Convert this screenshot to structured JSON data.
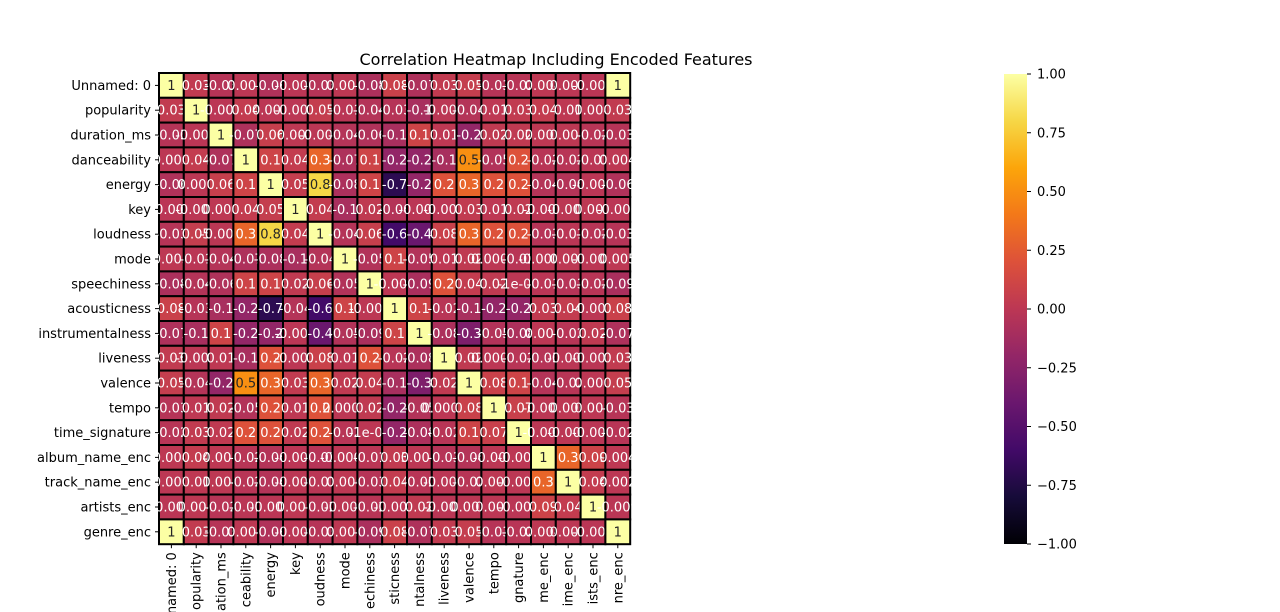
{
  "chart_data": {
    "type": "heatmap",
    "title": "Correlation Heatmap Including Encoded Features",
    "colormap": "inferno",
    "vmin": -1.0,
    "vmax": 1.0,
    "rows": [
      "Unnamed: 0",
      "popularity",
      "duration_ms",
      "danceability",
      "energy",
      "key",
      "loudness",
      "mode",
      "speechiness",
      "acousticness",
      "instrumentalness",
      "liveness",
      "valence",
      "tempo",
      "time_signature",
      "album_name_enc",
      "track_name_enc",
      "artists_enc",
      "genre_enc"
    ],
    "columns_visible_text": [
      "named: 0",
      "opularity",
      "ation_ms",
      "ceability",
      "energy",
      "key",
      "oudness",
      "mode",
      "echiness",
      "sticness",
      "ntalness",
      "liveness",
      "valence",
      "tempo",
      "gnature",
      "me_enc",
      "ime_enc",
      "ists_enc",
      "nre_enc"
    ],
    "values": [
      [
        1,
        0.03,
        -0.03,
        0.003,
        -0.06,
        -0.006,
        -0.03,
        0.005,
        -0.08,
        0.08,
        -0.07,
        0.03,
        0.05,
        -0.03,
        -0.02,
        0.004,
        0.002,
        -0.008,
        1
      ],
      [
        0.03,
        1,
        -0.007,
        0.04,
        0.001,
        -0.004,
        0.05,
        -0.01,
        -0.04,
        -0.03,
        -0.1,
        -0.005,
        -0.04,
        0.01,
        0.03,
        0.04,
        0.01,
        0.004,
        0.03
      ],
      [
        -0.03,
        -0.007,
        1,
        -0.07,
        0.06,
        0.008,
        -0.003,
        -0.04,
        -0.06,
        -0.1,
        0.1,
        0.01,
        -0.2,
        0.02,
        0.02,
        0.007,
        0.004,
        -0.02,
        -0.03
      ],
      [
        0.003,
        0.04,
        -0.07,
        1,
        0.1,
        0.04,
        0.3,
        -0.07,
        0.1,
        -0.2,
        -0.2,
        -0.1,
        0.5,
        -0.05,
        0.2,
        -0.02,
        -0.02,
        -0.01,
        0.004
      ],
      [
        -0.06,
        0.001,
        0.06,
        0.1,
        1,
        0.05,
        0.8,
        -0.08,
        0.1,
        -0.7,
        -0.2,
        0.2,
        0.3,
        0.2,
        0.2,
        -0.04,
        -0.04,
        -0.006,
        -0.06
      ],
      [
        -0.006,
        -0.004,
        0.008,
        0.04,
        0.05,
        1,
        0.04,
        -0.1,
        0.02,
        -0.04,
        -0.007,
        -0.002,
        0.03,
        0.01,
        0.02,
        -0.007,
        -0.004,
        0.007,
        -0.006
      ],
      [
        -0.03,
        0.05,
        -0.003,
        0.3,
        0.8,
        0.04,
        1,
        -0.04,
        0.06,
        -0.6,
        -0.4,
        0.08,
        0.3,
        0.2,
        0.2,
        -0.03,
        -0.01,
        -0.02,
        -0.03
      ],
      [
        0.005,
        -0.01,
        -0.04,
        -0.07,
        -0.08,
        -0.1,
        -0.04,
        1,
        -0.05,
        0.1,
        -0.05,
        0.01,
        0.02,
        0.0006,
        -0.02,
        -0.0004,
        0.006,
        -0.003,
        0.005
      ],
      [
        -0.08,
        -0.04,
        -0.06,
        0.1,
        0.1,
        0.02,
        0.06,
        -0.05,
        1,
        -0.002,
        -0.09,
        0.2,
        0.04,
        0.02,
        -1e-05,
        -0.01,
        -0.03,
        -0.02,
        -0.09
      ],
      [
        0.08,
        -0.03,
        -0.1,
        -0.2,
        -0.7,
        -0.04,
        -0.6,
        0.1,
        -0.002,
        1,
        0.1,
        -0.02,
        -0.1,
        -0.2,
        -0.2,
        0.03,
        0.04,
        -0.004,
        0.08
      ],
      [
        -0.07,
        -0.1,
        0.1,
        -0.2,
        -0.2,
        -0.007,
        -0.4,
        -0.05,
        -0.09,
        0.1,
        1,
        -0.08,
        -0.3,
        -0.05,
        -0.08,
        0.001,
        -0.02,
        0.02,
        -0.07
      ],
      [
        0.03,
        -0.005,
        0.01,
        -0.1,
        0.2,
        -0.002,
        0.08,
        0.01,
        0.2,
        -0.02,
        -0.08,
        1,
        0.02,
        0.0006,
        -0.02,
        -0.03,
        -0.006,
        -0.008,
        0.03
      ],
      [
        0.05,
        -0.04,
        -0.2,
        0.5,
        0.3,
        0.03,
        0.3,
        0.02,
        0.04,
        -0.1,
        -0.3,
        0.02,
        1,
        0.08,
        0.1,
        -0.04,
        -0.02,
        0.001,
        0.05
      ],
      [
        -0.03,
        0.01,
        0.02,
        -0.05,
        0.2,
        0.01,
        0.2,
        0.0006,
        0.02,
        -0.2,
        -0.05,
        0.0006,
        0.08,
        1,
        0.07,
        -0.003,
        0.006,
        0.001,
        -0.03
      ],
      [
        -0.02,
        0.03,
        0.02,
        0.2,
        0.2,
        0.02,
        0.2,
        -0.02,
        -1e-05,
        -0.2,
        -0.08,
        -0.02,
        0.1,
        0.07,
        1,
        -0.001,
        -0.003,
        -0.008,
        -0.02
      ],
      [
        0.004,
        0.04,
        0.007,
        -0.02,
        -0.04,
        -0.007,
        -0.03,
        -0.0004,
        -0.01,
        0.03,
        0.001,
        -0.03,
        -0.04,
        -0.003,
        -0.001,
        1,
        0.3,
        0.09,
        0.004
      ],
      [
        0.002,
        0.01,
        0.004,
        -0.02,
        -0.04,
        -0.004,
        -0.01,
        0.006,
        -0.03,
        0.04,
        -0.02,
        -0.006,
        -0.02,
        0.006,
        -0.003,
        0.3,
        1,
        0.04,
        0.002
      ],
      [
        -0.008,
        0.004,
        -0.02,
        -0.01,
        -0.006,
        0.007,
        -0.02,
        -0.003,
        -0.02,
        -0.004,
        0.02,
        -0.008,
        0.001,
        0.001,
        -0.008,
        0.09,
        0.04,
        1,
        -0.009
      ],
      [
        1,
        0.03,
        -0.03,
        0.004,
        -0.06,
        -0.006,
        -0.03,
        0.005,
        -0.09,
        0.08,
        -0.07,
        0.03,
        0.05,
        -0.03,
        -0.02,
        0.004,
        0.002,
        -0.009,
        1
      ]
    ],
    "colorbar_ticks": [
      1.0,
      0.75,
      0.5,
      0.25,
      0.0,
      -0.25,
      -0.5,
      -0.75,
      -1.0
    ],
    "colorbar_tick_labels": [
      "1.00",
      "0.75",
      "0.50",
      "0.25",
      "0.00",
      "−0.25",
      "−0.50",
      "−0.75",
      "−1.00"
    ]
  }
}
